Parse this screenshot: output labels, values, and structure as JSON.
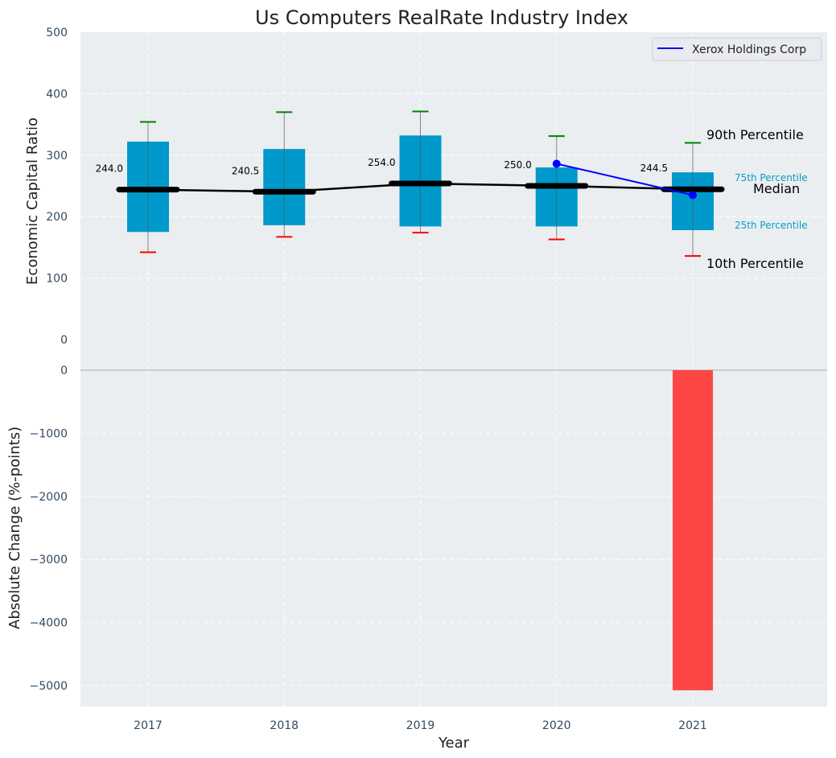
{
  "chart_data": [
    {
      "type": "box",
      "title": "Us Computers RealRate Industry Index",
      "xlabel": "",
      "ylabel": "Economic Capital Ratio",
      "ylim": [
        0,
        500
      ],
      "yticks": [
        0,
        100,
        200,
        300,
        400,
        500
      ],
      "grid": true,
      "categories": [
        "2017",
        "2018",
        "2019",
        "2020",
        "2021"
      ],
      "boxes": [
        {
          "year": "2017",
          "p10": 142,
          "p25": 175,
          "median": 244.0,
          "p75": 322,
          "p90": 354,
          "median_label": "244.0"
        },
        {
          "year": "2018",
          "p10": 167,
          "p25": 186,
          "median": 240.5,
          "p75": 310,
          "p90": 370,
          "median_label": "240.5"
        },
        {
          "year": "2019",
          "p10": 174,
          "p25": 184,
          "median": 254.0,
          "p75": 332,
          "p90": 371,
          "median_label": "254.0"
        },
        {
          "year": "2020",
          "p10": 163,
          "p25": 184,
          "median": 250.0,
          "p75": 280,
          "p90": 331,
          "median_label": "250.0"
        },
        {
          "year": "2021",
          "p10": 136,
          "p25": 178,
          "median": 244.5,
          "p75": 272,
          "p90": 320,
          "median_label": "244.5"
        }
      ],
      "series": [
        {
          "name": "Xerox Holdings Corp",
          "color": "#0000ff",
          "x": [
            "2020",
            "2021"
          ],
          "values": [
            286,
            235
          ]
        }
      ],
      "legend": {
        "position": "top-right",
        "entries": [
          "Xerox Holdings Corp"
        ]
      },
      "annotations": {
        "p90": "90th Percentile",
        "p75": "75th Percentile",
        "median": "Median",
        "p25": "25th Percentile",
        "p10": "10th Percentile"
      },
      "colors": {
        "box": "#0099cc",
        "median": "#000000",
        "whisker_top": "#008000",
        "whisker_bottom": "#ff0000",
        "background": "#eaeef0"
      }
    },
    {
      "type": "bar",
      "title": "",
      "xlabel": "Year",
      "ylabel": "Absolute Change (%-points)",
      "ylim": [
        -5300,
        0
      ],
      "yticks": [
        0,
        -1000,
        -2000,
        -3000,
        -4000,
        -5000
      ],
      "ytick_labels": [
        "0",
        "−1000",
        "−2000",
        "−3000",
        "−4000",
        "−5000"
      ],
      "grid": true,
      "categories": [
        "2017",
        "2018",
        "2019",
        "2020",
        "2021"
      ],
      "values": [
        0,
        0,
        0,
        0,
        -5075
      ],
      "colors": {
        "bar": "#ff3c3c"
      }
    }
  ]
}
